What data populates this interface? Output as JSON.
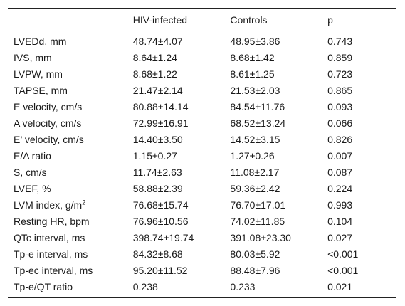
{
  "table": {
    "headers": [
      "",
      "HIV-infected",
      "Controls",
      "p"
    ],
    "rows": [
      {
        "label": "LVEDd, mm",
        "hiv": "48.74±4.07",
        "controls": "48.95±3.86",
        "p": "0.743"
      },
      {
        "label": "IVS, mm",
        "hiv": "8.64±1.24",
        "controls": "8.68±1.42",
        "p": "0.859"
      },
      {
        "label": "LVPW, mm",
        "hiv": "8.68±1.22",
        "controls": "8.61±1.25",
        "p": "0.723"
      },
      {
        "label": "TAPSE, mm",
        "hiv": "21.47±2.14",
        "controls": "21.53±2.03",
        "p": "0.865"
      },
      {
        "label": "E velocity, cm/s",
        "hiv": "80.88±14.14",
        "controls": "84.54±11.76",
        "p": "0.093"
      },
      {
        "label": "A velocity, cm/s",
        "hiv": "72.99±16.91",
        "controls": "68.52±13.24",
        "p": "0.066"
      },
      {
        "label": "E’ velocity, cm/s",
        "hiv": "14.40±3.50",
        "controls": "14.52±3.15",
        "p": "0.826"
      },
      {
        "label": "E/A ratio",
        "hiv": "1.15±0.27",
        "controls": "1.27±0.26",
        "p": "0.007"
      },
      {
        "label": "S, cm/s",
        "hiv": "11.74±2.63",
        "controls": "11.08±2.17",
        "p": "0.087"
      },
      {
        "label": "LVEF, %",
        "hiv": "58.88±2.39",
        "controls": "59.36±2.42",
        "p": "0.224"
      },
      {
        "label": "LVM index, g/m",
        "label_sup": "2",
        "hiv": "76.68±15.74",
        "controls": "76.70±17.01",
        "p": "0.993"
      },
      {
        "label": "Resting HR, bpm",
        "hiv": "76.96±10.56",
        "controls": "74.02±11.85",
        "p": "0.104"
      },
      {
        "label": "QTc interval, ms",
        "hiv": "398.74±19.74",
        "controls": "391.08±23.30",
        "p": "0.027"
      },
      {
        "label": "Tp-e interval, ms",
        "hiv": "84.32±8.68",
        "controls": "80.03±5.92",
        "p": "<0.001"
      },
      {
        "label": "Tp-ec interval, ms",
        "hiv": "95.20±11.52",
        "controls": "88.48±7.96",
        "p": "<0.001"
      },
      {
        "label": "Tp-e/QT ratio",
        "hiv": "0.238",
        "controls": "0.233",
        "p": "0.021"
      }
    ]
  }
}
